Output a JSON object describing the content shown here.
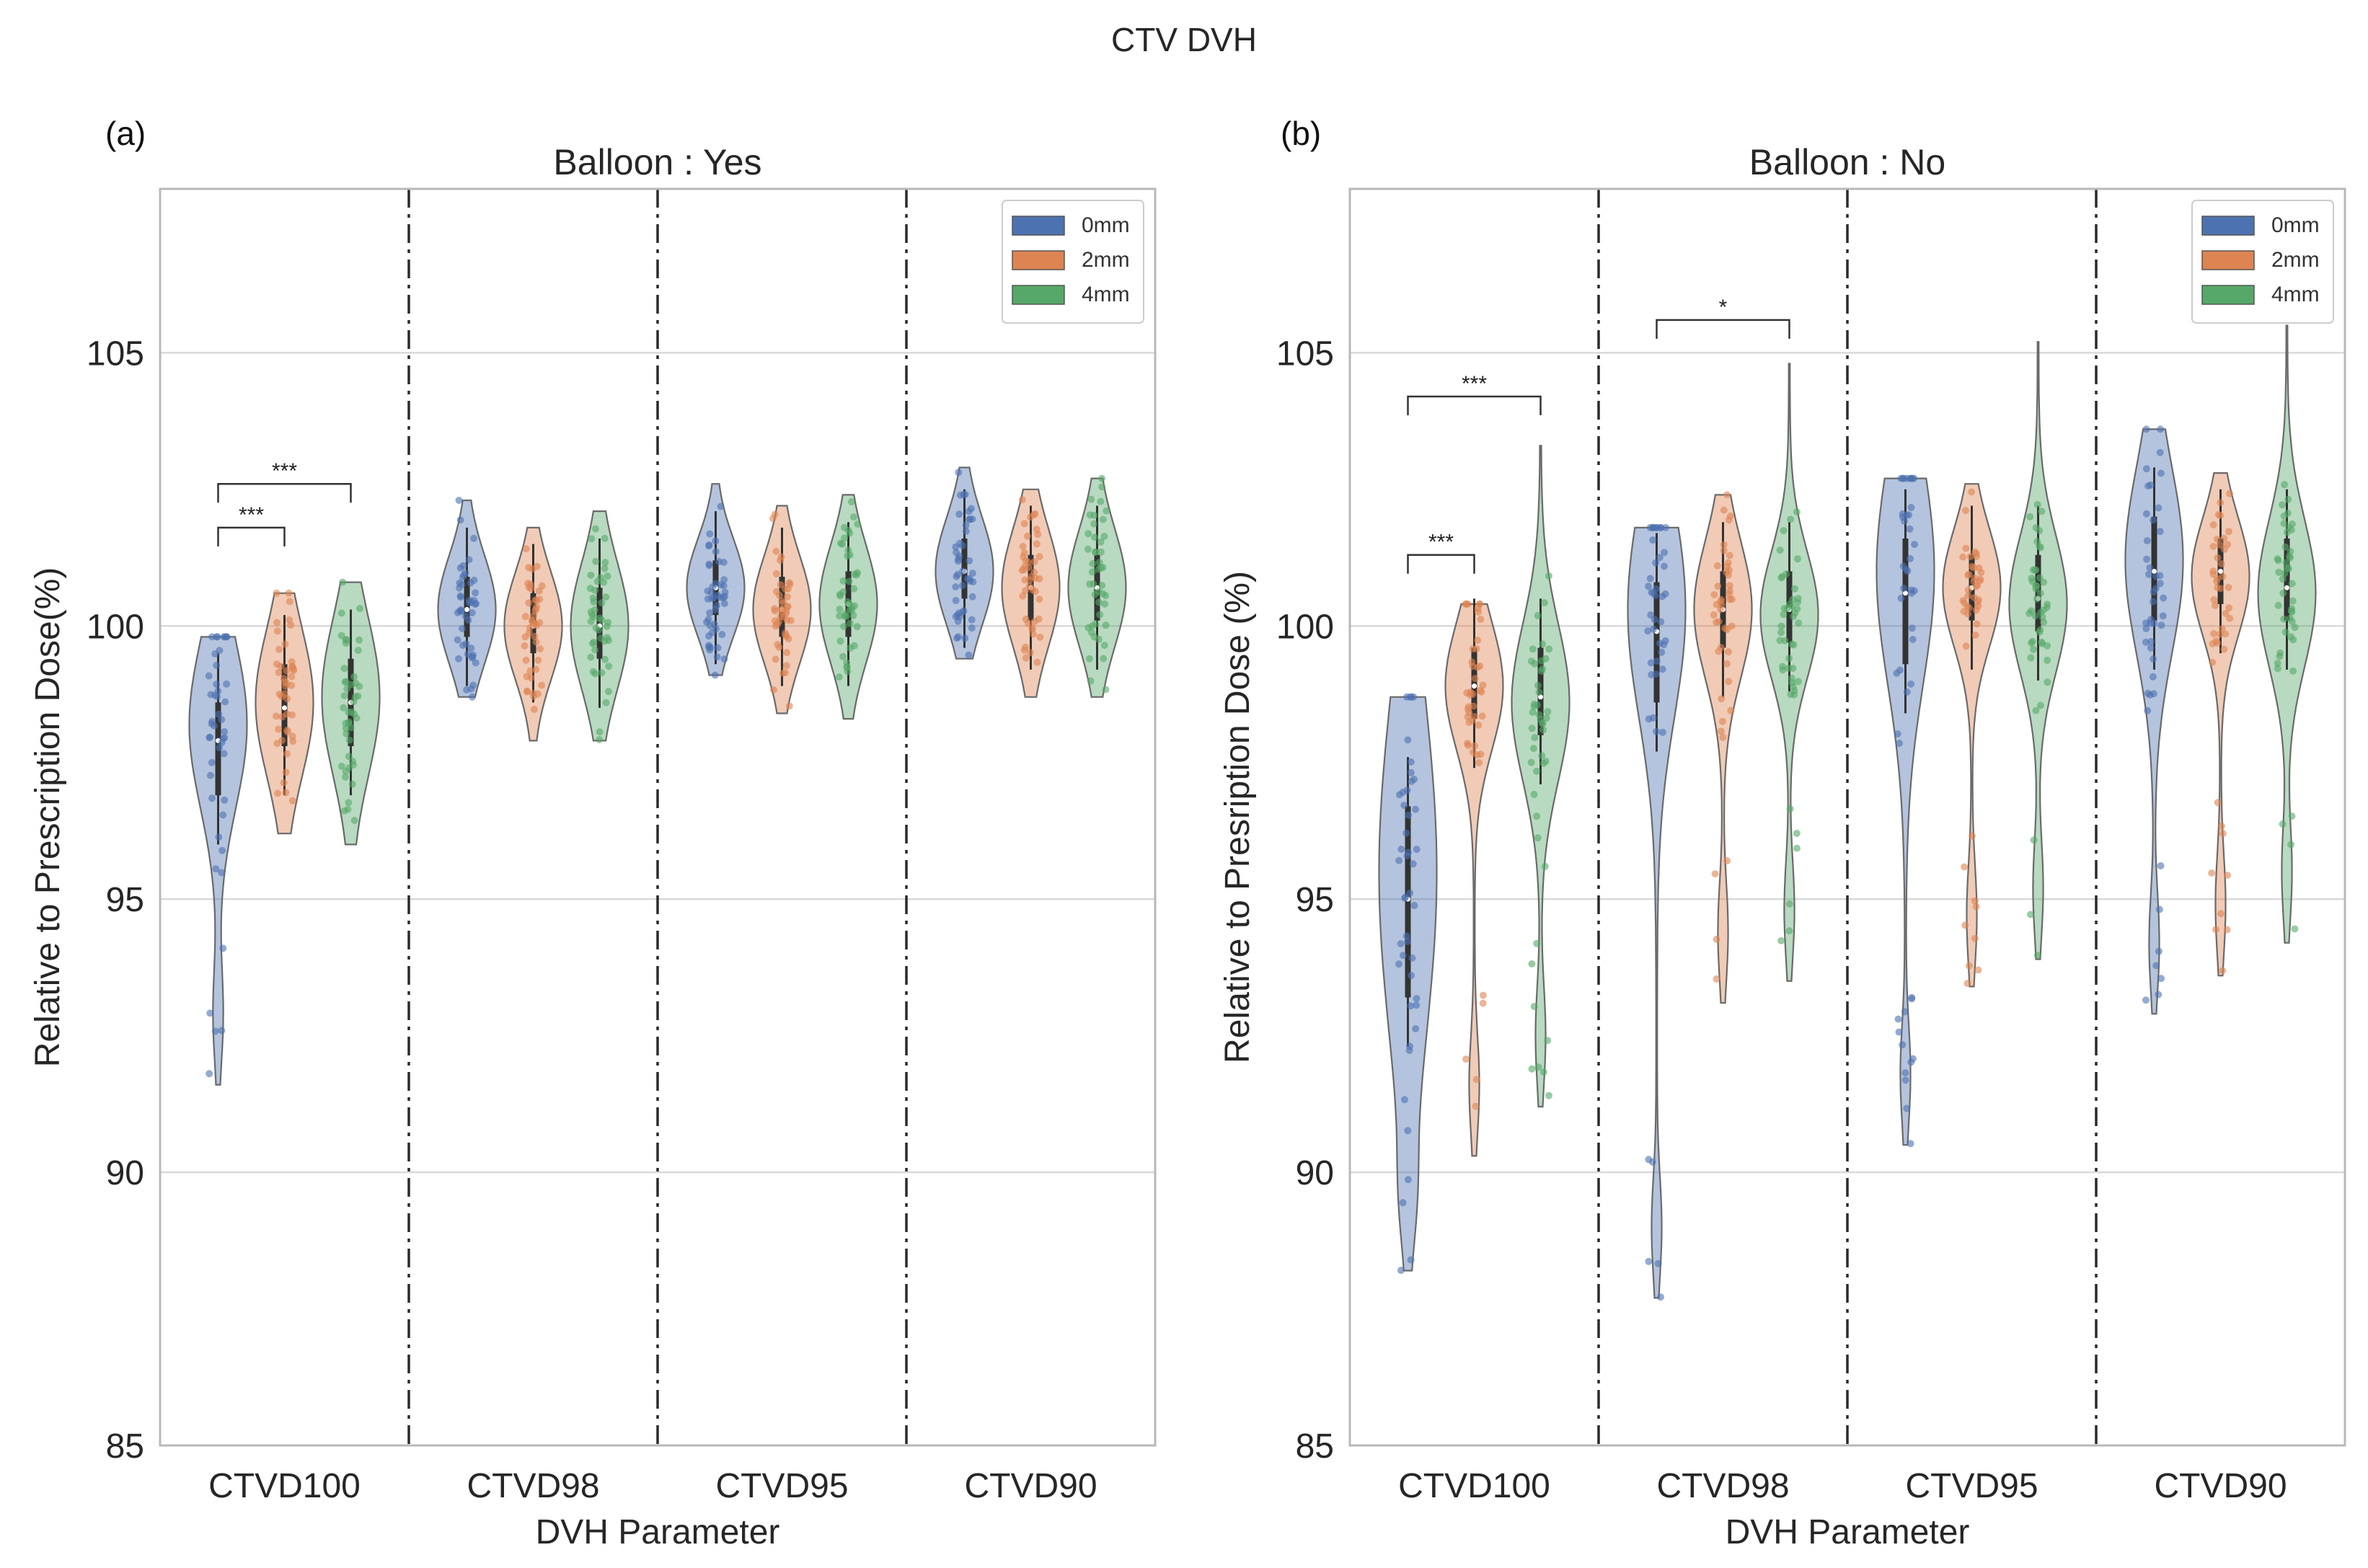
{
  "figure": {
    "title": "CTV DVH",
    "colors": {
      "0mm": "#4c72b0",
      "2mm": "#dd8452",
      "4mm": "#55a868",
      "grid": "#d9d9d9",
      "frame": "#b8b8b8",
      "text": "#262626"
    }
  },
  "chart_data": [
    {
      "type": "violin",
      "panel_label": "(a)",
      "title": "Balloon : Yes",
      "xlabel": "DVH Parameter",
      "ylabel": "Relative to Prescription Dose(%)",
      "ylim": [
        85,
        108
      ],
      "yticks": [
        85,
        90,
        95,
        100,
        105
      ],
      "categories": [
        "CTVD100",
        "CTVD98",
        "CTVD95",
        "CTVD90"
      ],
      "legend": {
        "position": "top-right",
        "entries": [
          "0mm",
          "2mm",
          "4mm"
        ]
      },
      "series": [
        {
          "name": "0mm",
          "groups": [
            {
              "min": 91.6,
              "max": 99.8,
              "median": 97.9,
              "q1": 96.9,
              "q3": 98.6,
              "mode": 98.2
            },
            {
              "min": 98.7,
              "max": 102.3,
              "median": 100.3,
              "q1": 99.8,
              "q3": 100.9,
              "mode": 100.3
            },
            {
              "min": 99.1,
              "max": 102.6,
              "median": 100.7,
              "q1": 100.2,
              "q3": 101.2,
              "mode": 100.7
            },
            {
              "min": 99.4,
              "max": 102.9,
              "median": 101.0,
              "q1": 100.5,
              "q3": 101.6,
              "mode": 101.0
            }
          ]
        },
        {
          "name": "2mm",
          "groups": [
            {
              "min": 96.2,
              "max": 100.6,
              "median": 98.5,
              "q1": 97.8,
              "q3": 99.3,
              "mode": 98.6
            },
            {
              "min": 97.9,
              "max": 101.8,
              "median": 100.0,
              "q1": 99.5,
              "q3": 100.6,
              "mode": 100.0
            },
            {
              "min": 98.4,
              "max": 102.2,
              "median": 100.3,
              "q1": 99.8,
              "q3": 100.9,
              "mode": 100.3
            },
            {
              "min": 98.7,
              "max": 102.5,
              "median": 100.7,
              "q1": 100.1,
              "q3": 101.3,
              "mode": 100.7
            }
          ]
        },
        {
          "name": "4mm",
          "groups": [
            {
              "min": 96.0,
              "max": 100.8,
              "median": 98.6,
              "q1": 97.8,
              "q3": 99.4,
              "mode": 98.7
            },
            {
              "min": 97.9,
              "max": 102.1,
              "median": 100.0,
              "q1": 99.4,
              "q3": 100.7,
              "mode": 100.0
            },
            {
              "min": 98.3,
              "max": 102.4,
              "median": 100.4,
              "q1": 99.8,
              "q3": 101.0,
              "mode": 100.4
            },
            {
              "min": 98.7,
              "max": 102.7,
              "median": 100.7,
              "q1": 100.1,
              "q3": 101.3,
              "mode": 100.7
            }
          ]
        }
      ],
      "annotations": [
        {
          "category": "CTVD100",
          "from": "0mm",
          "to": "2mm",
          "y": 101.8,
          "text": "***"
        },
        {
          "category": "CTVD100",
          "from": "0mm",
          "to": "4mm",
          "y": 102.6,
          "text": "***"
        }
      ]
    },
    {
      "type": "violin",
      "panel_label": "(b)",
      "title": "Balloon : No",
      "xlabel": "DVH Parameter",
      "ylabel": "Relative to Presription Dose (%)",
      "ylim": [
        85,
        108
      ],
      "yticks": [
        85,
        90,
        95,
        100,
        105
      ],
      "categories": [
        "CTVD100",
        "CTVD98",
        "CTVD95",
        "CTVD90"
      ],
      "legend": {
        "position": "top-right",
        "entries": [
          "0mm",
          "2mm",
          "4mm"
        ]
      },
      "series": [
        {
          "name": "0mm",
          "groups": [
            {
              "min": 88.2,
              "max": 98.7,
              "median": 95.0,
              "q1": 93.2,
              "q3": 96.7,
              "mode": 95.5
            },
            {
              "min": 87.7,
              "max": 101.8,
              "median": 99.9,
              "q1": 98.6,
              "q3": 100.8,
              "mode": 100.3
            },
            {
              "min": 90.5,
              "max": 102.7,
              "median": 100.6,
              "q1": 99.3,
              "q3": 101.6,
              "mode": 101.0
            },
            {
              "min": 92.9,
              "max": 103.6,
              "median": 101.0,
              "q1": 100.1,
              "q3": 102.0,
              "mode": 101.2
            }
          ]
        },
        {
          "name": "2mm",
          "groups": [
            {
              "min": 90.3,
              "max": 100.4,
              "median": 98.9,
              "q1": 98.3,
              "q3": 99.6,
              "mode": 98.9
            },
            {
              "min": 93.1,
              "max": 102.4,
              "median": 100.3,
              "q1": 99.6,
              "q3": 101.0,
              "mode": 100.3
            },
            {
              "min": 93.4,
              "max": 102.6,
              "median": 100.7,
              "q1": 100.1,
              "q3": 101.3,
              "mode": 100.7
            },
            {
              "min": 93.6,
              "max": 102.8,
              "median": 101.0,
              "q1": 100.4,
              "q3": 101.6,
              "mode": 100.9
            }
          ]
        },
        {
          "name": "4mm",
          "groups": [
            {
              "min": 91.2,
              "max": 103.3,
              "median": 98.7,
              "q1": 98.0,
              "q3": 99.6,
              "mode": 98.6
            },
            {
              "min": 93.5,
              "max": 104.8,
              "median": 100.3,
              "q1": 99.7,
              "q3": 101.0,
              "mode": 100.2
            },
            {
              "min": 93.9,
              "max": 105.2,
              "median": 100.5,
              "q1": 99.9,
              "q3": 101.3,
              "mode": 100.4
            },
            {
              "min": 94.2,
              "max": 105.5,
              "median": 100.7,
              "q1": 100.1,
              "q3": 101.6,
              "mode": 100.6
            }
          ]
        }
      ],
      "annotations": [
        {
          "category": "CTVD100",
          "from": "0mm",
          "to": "2mm",
          "y": 101.3,
          "text": "***"
        },
        {
          "category": "CTVD100",
          "from": "0mm",
          "to": "4mm",
          "y": 104.2,
          "text": "***"
        },
        {
          "category": "CTVD98",
          "from": "0mm",
          "to": "4mm",
          "y": 105.6,
          "text": "*"
        }
      ]
    }
  ]
}
